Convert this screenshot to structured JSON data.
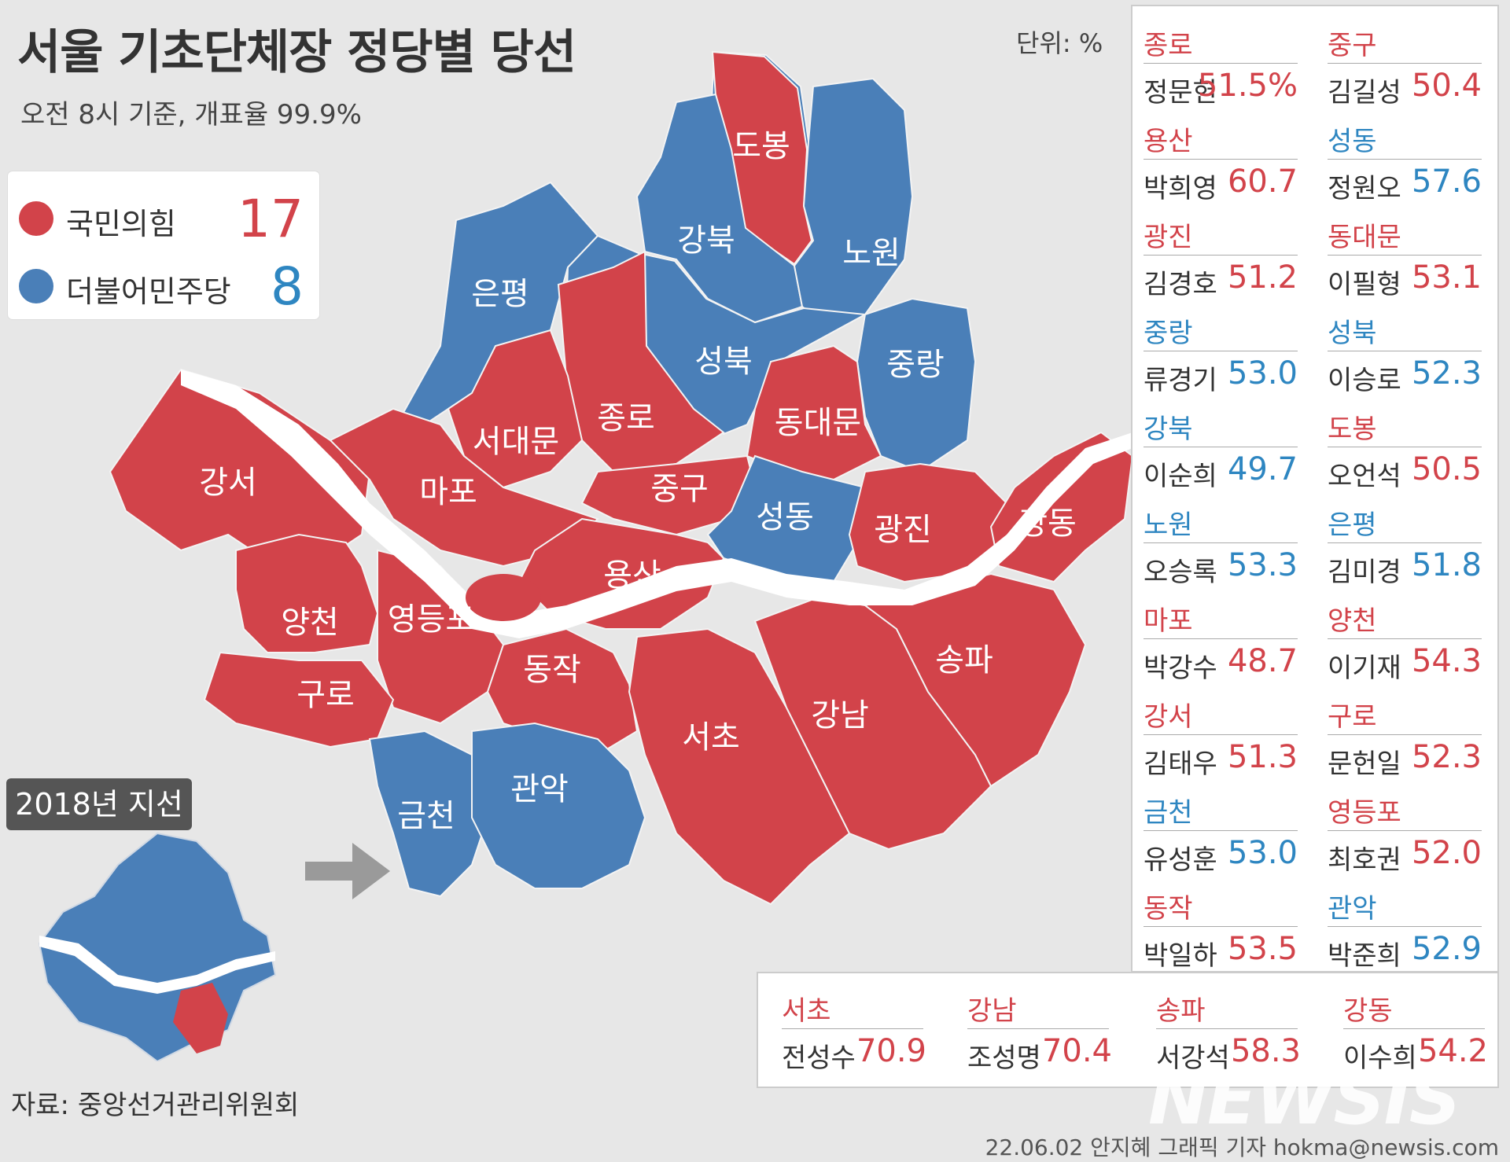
{
  "title": "서울 기초단체장 정당별 당선",
  "subtitle": "오전 8시 기준, 개표율 99.9%",
  "unit": "단위: %",
  "colors": {
    "ppp": "#d2434a",
    "dem": "#4a7fb8",
    "river": "#ffffff"
  },
  "legend": [
    {
      "party": "국민의힘",
      "count": "17",
      "color": "#d2434a"
    },
    {
      "party": "더불어민주당",
      "count": "8",
      "color": "#4a7fb8"
    }
  ],
  "map_labels": {
    "dobong": "도봉",
    "gangbuk": "강북",
    "nowon": "노원",
    "eunpyeong": "은평",
    "seongbuk": "성북",
    "jungnang": "중랑",
    "jongno": "종로",
    "seodaemun": "서대문",
    "dongdaemun": "동대문",
    "gangseo": "강서",
    "mapo": "마포",
    "junggu": "중구",
    "seongdong": "성동",
    "gwangjin": "광진",
    "gangdong": "강동",
    "yongsan": "용산",
    "yangcheon": "양천",
    "yeongdeungpo": "영등포",
    "dongjak": "동작",
    "songpa": "송파",
    "guro": "구로",
    "gangnam": "강남",
    "seocho": "서초",
    "geumcheon": "금천",
    "gwanak": "관악"
  },
  "badge": "2018년 지선",
  "source": "자료: 중앙선거관리위원회",
  "credit": "22.06.02 안지혜 그래픽 기자 hokma@newsis.com",
  "watermark": "NEWSIS",
  "results": [
    {
      "district": "종로",
      "winner": "정문헌",
      "pct": "51.5%",
      "party": "ppp"
    },
    {
      "district": "중구",
      "winner": "김길성",
      "pct": "50.4",
      "party": "ppp"
    },
    {
      "district": "용산",
      "winner": "박희영",
      "pct": "60.7",
      "party": "ppp"
    },
    {
      "district": "성동",
      "winner": "정원오",
      "pct": "57.6",
      "party": "dem"
    },
    {
      "district": "광진",
      "winner": "김경호",
      "pct": "51.2",
      "party": "ppp"
    },
    {
      "district": "동대문",
      "winner": "이필형",
      "pct": "53.1",
      "party": "ppp"
    },
    {
      "district": "중랑",
      "winner": "류경기",
      "pct": "53.0",
      "party": "dem"
    },
    {
      "district": "성북",
      "winner": "이승로",
      "pct": "52.3",
      "party": "dem"
    },
    {
      "district": "강북",
      "winner": "이순희",
      "pct": "49.7",
      "party": "dem"
    },
    {
      "district": "도봉",
      "winner": "오언석",
      "pct": "50.5",
      "party": "ppp"
    },
    {
      "district": "노원",
      "winner": "오승록",
      "pct": "53.3",
      "party": "dem"
    },
    {
      "district": "은평",
      "winner": "김미경",
      "pct": "51.8",
      "party": "dem"
    },
    {
      "district": "마포",
      "winner": "박강수",
      "pct": "48.7",
      "party": "ppp"
    },
    {
      "district": "양천",
      "winner": "이기재",
      "pct": "54.3",
      "party": "ppp"
    },
    {
      "district": "강서",
      "winner": "김태우",
      "pct": "51.3",
      "party": "ppp"
    },
    {
      "district": "구로",
      "winner": "문헌일",
      "pct": "52.3",
      "party": "ppp"
    },
    {
      "district": "금천",
      "winner": "유성훈",
      "pct": "53.0",
      "party": "dem"
    },
    {
      "district": "영등포",
      "winner": "최호권",
      "pct": "52.0",
      "party": "ppp"
    },
    {
      "district": "동작",
      "winner": "박일하",
      "pct": "53.5",
      "party": "ppp"
    },
    {
      "district": "관악",
      "winner": "박준희",
      "pct": "52.9",
      "party": "dem"
    }
  ],
  "bottom_results": [
    {
      "district": "서초",
      "winner": "전성수",
      "pct": "70.9",
      "party": "ppp"
    },
    {
      "district": "강남",
      "winner": "조성명",
      "pct": "70.4",
      "party": "ppp"
    },
    {
      "district": "송파",
      "winner": "서강석",
      "pct": "58.3",
      "party": "ppp"
    },
    {
      "district": "강동",
      "winner": "이수희",
      "pct": "54.2",
      "party": "ppp"
    }
  ]
}
